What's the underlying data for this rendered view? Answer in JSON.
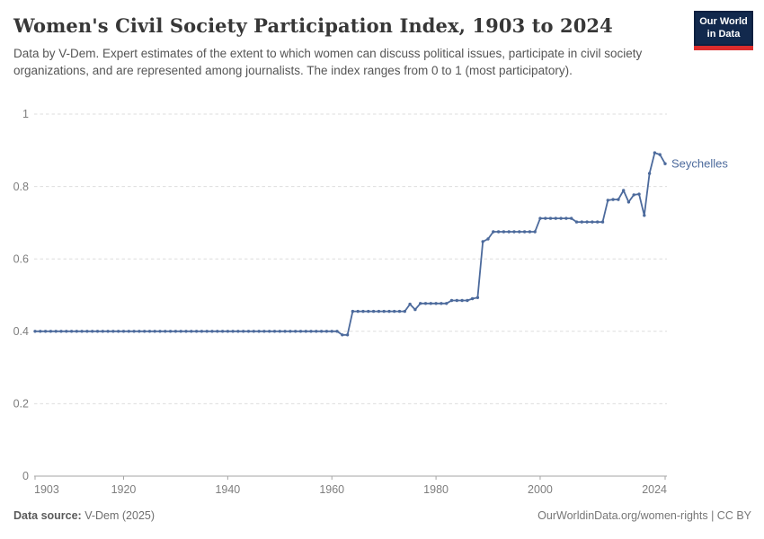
{
  "header": {
    "title": "Women's Civil Society Participation Index, 1903 to 2024",
    "subtitle": "Data by V-Dem. Expert estimates of the extent to which women can discuss political issues, participate in civil society organizations, and are represented among journalists. The index ranges from 0 to 1 (most participatory)."
  },
  "logo": {
    "line1": "Our World",
    "line2": "in Data",
    "bg_color": "#12294d",
    "accent_color": "#dc2c2c"
  },
  "footer": {
    "datasource_label": "Data source:",
    "datasource_value": " V-Dem (2025)",
    "link_text": "OurWorldinData.org/women-rights | CC BY"
  },
  "chart_data": {
    "type": "line",
    "title": "Women's Civil Society Participation Index, 1903 to 2024",
    "xlabel": "",
    "ylabel": "",
    "x_start_year": 1903,
    "x_end_year": 2024,
    "xlim": [
      1903,
      2024
    ],
    "ylim": [
      0,
      1
    ],
    "xticks": [
      1903,
      1920,
      1940,
      1960,
      1980,
      2000,
      2024
    ],
    "yticks": [
      0,
      0.2,
      0.4,
      0.6,
      0.8,
      1
    ],
    "grid": "horizontal-dashed",
    "legend_position": "end-of-line-label",
    "colors": {
      "line": "#4c6a9c",
      "grid": "#dedede",
      "axis": "#a5a5a5",
      "tick_text": "#7e7e7e"
    },
    "series": [
      {
        "name": "Seychelles",
        "values": [
          0.4,
          0.4,
          0.4,
          0.4,
          0.4,
          0.4,
          0.4,
          0.4,
          0.4,
          0.4,
          0.4,
          0.4,
          0.4,
          0.4,
          0.4,
          0.4,
          0.4,
          0.4,
          0.4,
          0.4,
          0.4,
          0.4,
          0.4,
          0.4,
          0.4,
          0.4,
          0.4,
          0.4,
          0.4,
          0.4,
          0.4,
          0.4,
          0.4,
          0.4,
          0.4,
          0.4,
          0.4,
          0.4,
          0.4,
          0.4,
          0.4,
          0.4,
          0.4,
          0.4,
          0.4,
          0.4,
          0.4,
          0.4,
          0.4,
          0.4,
          0.4,
          0.4,
          0.4,
          0.4,
          0.4,
          0.4,
          0.4,
          0.4,
          0.4,
          0.39,
          0.39,
          0.455,
          0.455,
          0.455,
          0.455,
          0.455,
          0.455,
          0.455,
          0.455,
          0.455,
          0.455,
          0.455,
          0.475,
          0.46,
          0.477,
          0.477,
          0.477,
          0.477,
          0.477,
          0.477,
          0.485,
          0.485,
          0.485,
          0.485,
          0.49,
          0.493,
          0.648,
          0.655,
          0.675,
          0.675,
          0.675,
          0.675,
          0.675,
          0.675,
          0.675,
          0.675,
          0.675,
          0.712,
          0.712,
          0.712,
          0.712,
          0.712,
          0.712,
          0.712,
          0.702,
          0.702,
          0.702,
          0.702,
          0.702,
          0.702,
          0.762,
          0.764,
          0.764,
          0.789,
          0.757,
          0.777,
          0.779,
          0.72,
          0.836,
          0.893,
          0.888,
          0.863
        ]
      }
    ]
  }
}
